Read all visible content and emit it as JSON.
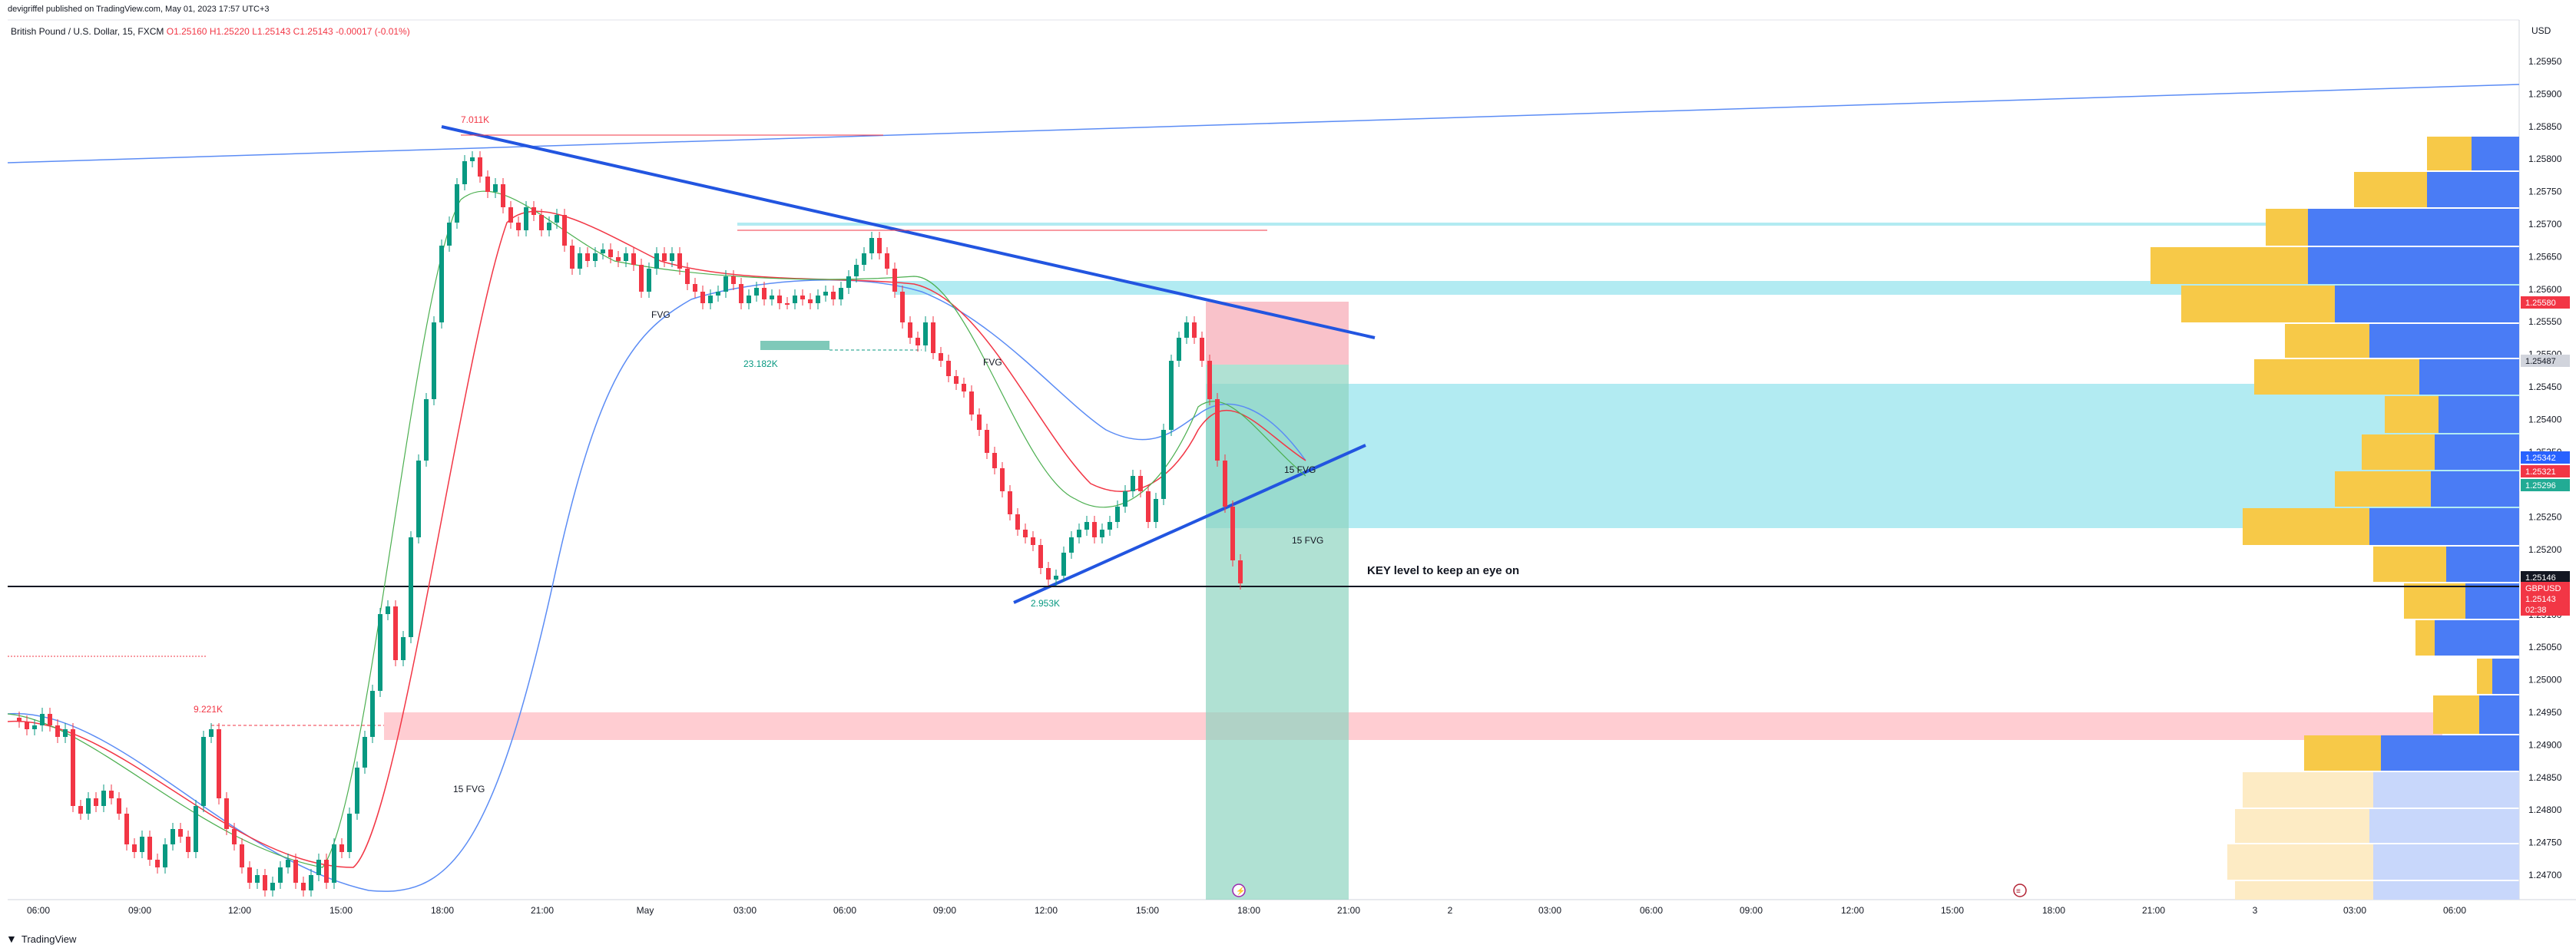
{
  "publisher_line": "devigriffel published on TradingView.com, May 01, 2023 17:57 UTC+3",
  "symbol": {
    "name": "British Pound / U.S. Dollar, 15, FXCM",
    "open": "O1.25160",
    "high": "H1.25220",
    "low": "L1.25143",
    "close": "C1.25143",
    "change": "-0.00017 (-0.01%)"
  },
  "currency": "USD",
  "price_axis": [
    "1.25950",
    "1.25900",
    "1.25850",
    "1.25800",
    "1.25750",
    "1.25700",
    "1.25650",
    "1.25600",
    "1.25550",
    "1.25500",
    "1.25450",
    "1.25400",
    "1.25350",
    "1.25300",
    "1.25250",
    "1.25200",
    "1.25150",
    "1.25100",
    "1.25050",
    "1.25000",
    "1.24950",
    "1.24900",
    "1.24850",
    "1.24800",
    "1.24750",
    "1.24700"
  ],
  "price_badges": [
    {
      "label": "1.25580",
      "color": "#f23645",
      "text_color": "#ffffff"
    },
    {
      "label": "1.25487",
      "color": "#d1d4dc",
      "text_color": "#131722"
    },
    {
      "label": "1.25342",
      "color": "#2962ff",
      "text_color": "#ffffff"
    },
    {
      "label": "1.25321",
      "color": "#f23645",
      "text_color": "#ffffff"
    },
    {
      "label": "1.25296",
      "color": "#22ab94",
      "text_color": "#ffffff"
    },
    {
      "label": "1.25146",
      "color": "#131722",
      "text_color": "#ffffff"
    },
    {
      "label": "GBPUSD",
      "color": "#f23645",
      "text_color": "#ffffff"
    },
    {
      "label": "1.25143",
      "color": "#f23645",
      "text_color": "#ffffff"
    },
    {
      "label": "02:38",
      "color": "#f23645",
      "text_color": "#ffffff"
    }
  ],
  "time_axis": [
    "06:00",
    "09:00",
    "12:00",
    "15:00",
    "18:00",
    "21:00",
    "May",
    "03:00",
    "06:00",
    "09:00",
    "12:00",
    "15:00",
    "18:00",
    "21:00",
    "2",
    "03:00",
    "06:00",
    "09:00",
    "12:00",
    "15:00",
    "18:00",
    "21:00",
    "3",
    "03:00",
    "06:00"
  ],
  "annotations": {
    "vol_top": "7.011K",
    "vol_left": "9.221K",
    "vol_mid": "23.182K",
    "vol_low": "2.953K",
    "fvg_1": "FVG",
    "fvg_2": "FVG",
    "fvg_15_left": "15 FVG",
    "fvg_15_a": "15 FVG",
    "fvg_15_b": "15 FVG",
    "key_level": "KEY level to keep an eye on"
  },
  "footer": {
    "brand": "TradingView"
  },
  "colors": {
    "bull": "#089981",
    "bear": "#f23645",
    "trend_line": "#2962ff",
    "fvg_zone": "#b2ebf2",
    "supply_zone": "#ffcdd2",
    "profile_blue": "#4a7cf5",
    "profile_gold": "#f7c948"
  }
}
